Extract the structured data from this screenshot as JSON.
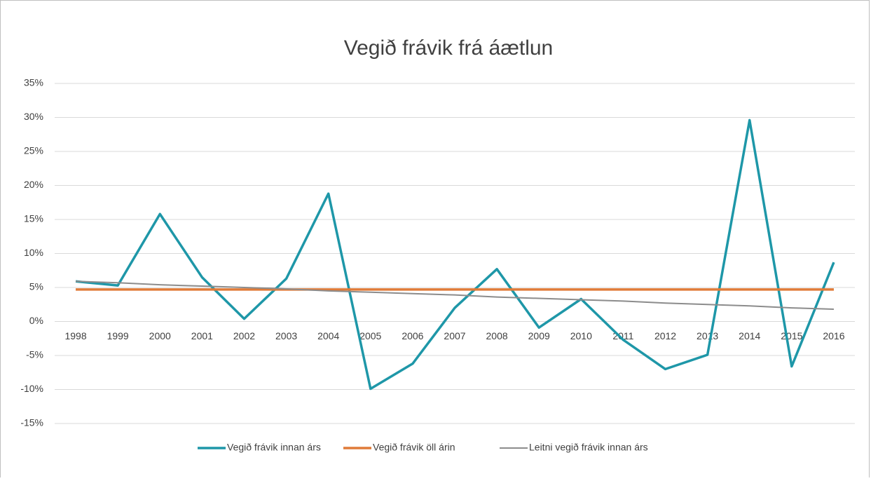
{
  "chart_data": {
    "type": "line",
    "title": "Vegið frávik frá áætlun",
    "categories": [
      "1998",
      "1999",
      "2000",
      "2001",
      "2002",
      "2003",
      "2004",
      "2005",
      "2006",
      "2007",
      "2008",
      "2009",
      "2010",
      "2011",
      "2012",
      "2013",
      "2014",
      "2015",
      "2016"
    ],
    "series": [
      {
        "name": "Vegið frávik innan árs",
        "color": "#1e97a8",
        "width": 3.5,
        "values": [
          5.9,
          5.3,
          15.8,
          6.5,
          0.4,
          6.3,
          18.8,
          -9.9,
          -6.2,
          2.0,
          7.7,
          -0.9,
          3.3,
          -2.7,
          -7.0,
          -4.9,
          29.6,
          -6.6,
          8.7
        ]
      },
      {
        "name": "Vegið frávik öll árin",
        "color": "#e07b39",
        "width": 3.5,
        "values": [
          4.7,
          4.7,
          4.7,
          4.7,
          4.7,
          4.7,
          4.7,
          4.7,
          4.7,
          4.7,
          4.7,
          4.7,
          4.7,
          4.7,
          4.7,
          4.7,
          4.7,
          4.7,
          4.7
        ]
      },
      {
        "name": "Leitni vegið frávik innan árs",
        "color": "#8c8c8c",
        "width": 2,
        "values": [
          5.9,
          5.7,
          5.4,
          5.2,
          5.0,
          4.8,
          4.5,
          4.3,
          4.1,
          3.9,
          3.6,
          3.4,
          3.2,
          3.0,
          2.7,
          2.5,
          2.3,
          2.0,
          1.8
        ]
      }
    ],
    "ylim": [
      -15,
      35
    ],
    "yticks": [
      {
        "value": -15,
        "label": "-15%"
      },
      {
        "value": -10,
        "label": "-10%"
      },
      {
        "value": -5,
        "label": "-5%"
      },
      {
        "value": 0,
        "label": "0%"
      },
      {
        "value": 5,
        "label": "5%"
      },
      {
        "value": 10,
        "label": "10%"
      },
      {
        "value": 15,
        "label": "15%"
      },
      {
        "value": 20,
        "label": "20%"
      },
      {
        "value": 25,
        "label": "25%"
      },
      {
        "value": 30,
        "label": "30%"
      },
      {
        "value": 35,
        "label": "35%"
      }
    ],
    "grid": true,
    "legend": "bottom"
  }
}
